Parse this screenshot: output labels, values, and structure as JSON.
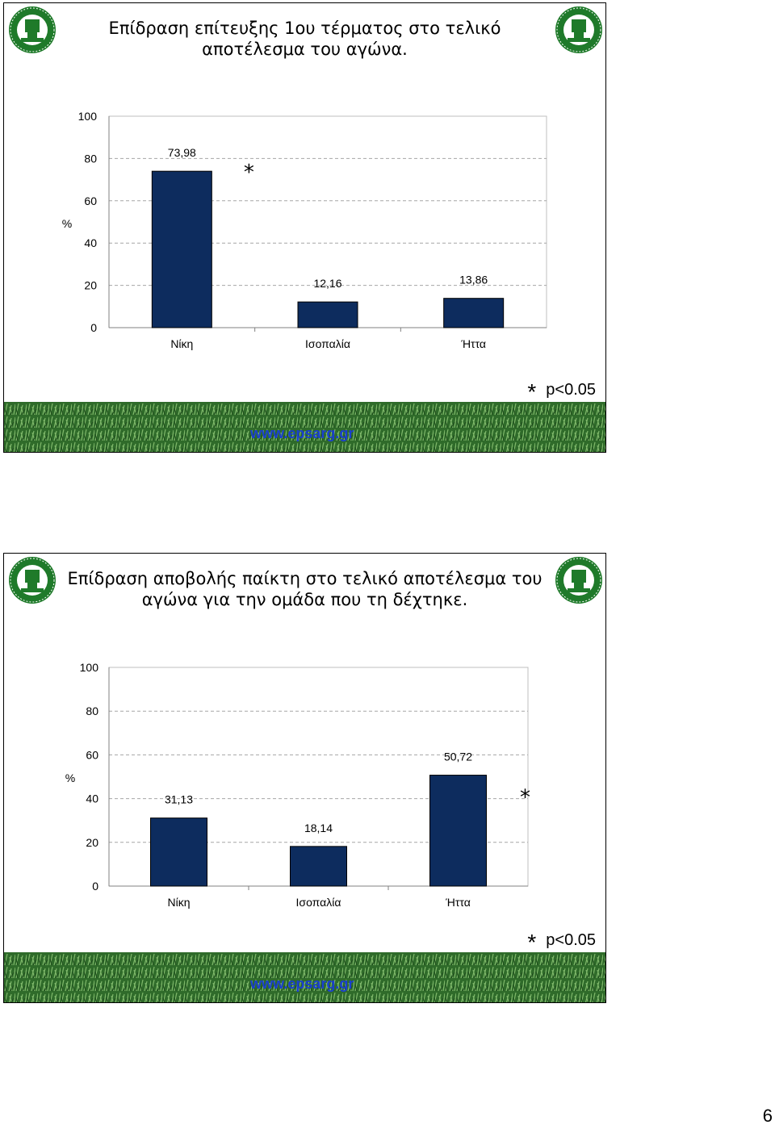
{
  "slides": [
    {
      "title_lines": [
        "Επίδραση επίτευξης 1ου τέρματος στο τελικό",
        "αποτέλεσμα του αγώνα."
      ],
      "significance_star": "*",
      "significance_note": "p<0.05",
      "website": "www.epsarg.gr",
      "logo": {
        "ring_text": "ΕΝΩΣΗ ΠΟΔΟΣΦΑΙΡΙΚΩΝ ΣΩΜΑΤΕΙΩΝ",
        "bottom_text": "ΑΡΓΟΛΙΔΑΣ",
        "year": "1964"
      }
    },
    {
      "title_lines": [
        "Επίδραση αποβολής παίκτη στο τελικό αποτέλεσμα του",
        "αγώνα για την ομάδα που τη δέχτηκε."
      ],
      "significance_star": "*",
      "significance_note": "p<0.05",
      "website": "www.epsarg.gr",
      "logo": {
        "ring_text": "ΕΝΩΣΗ ΠΟΔΟΣΦΑΙΡΙΚΩΝ ΣΩΜΑΤΕΙΩΝ",
        "bottom_text": "ΑΡΓΟΛΙΔΑΣ",
        "year": "1964"
      }
    }
  ],
  "page_number": "6",
  "colors": {
    "bar": "#0d2c5e",
    "grid": "#a6a6a6",
    "logo_green": "#1f7a2a",
    "url": "#1a3fcf"
  },
  "chart_data": [
    {
      "type": "bar",
      "categories": [
        "Νίκη",
        "Ισοπαλία",
        "Ήττα"
      ],
      "values": [
        73.98,
        12.16,
        13.86
      ],
      "value_labels": [
        "73,98",
        "12,16",
        "13,86"
      ],
      "ylabel": "%",
      "ylim": [
        0,
        100
      ],
      "yticks": [
        "0",
        "20",
        "40",
        "60",
        "80",
        "100"
      ],
      "grid": true,
      "significant_category": "Νίκη",
      "significance_star": "*"
    },
    {
      "type": "bar",
      "categories": [
        "Νίκη",
        "Ισοπαλία",
        "Ήττα"
      ],
      "values": [
        31.13,
        18.14,
        50.72
      ],
      "value_labels": [
        "31,13",
        "18,14",
        "50,72"
      ],
      "ylabel": "%",
      "ylim": [
        0,
        100
      ],
      "yticks": [
        "0",
        "20",
        "40",
        "60",
        "80",
        "100"
      ],
      "grid": true,
      "significant_category": "Ήττα",
      "significance_star": "*"
    }
  ]
}
